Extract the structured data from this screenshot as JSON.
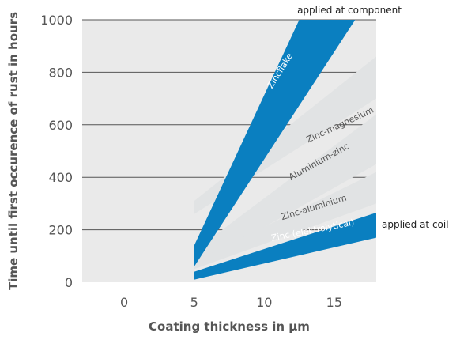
{
  "chart_data": {
    "type": "area",
    "xlabel": "Coating thickness in µm",
    "ylabel": "Time until first occurence of rust in hours",
    "xlim": [
      -3,
      18
    ],
    "ylim": [
      0,
      1000
    ],
    "xticks": [
      0,
      5,
      10,
      15
    ],
    "yticks": [
      0,
      200,
      400,
      600,
      800,
      1000
    ],
    "grid": "horizontal",
    "annotations": {
      "top": "applied at component",
      "right": "applied at coil"
    },
    "colors": {
      "blue": "#0a7fc0",
      "gray": "#e1e3e4",
      "plot_bg": "#eaeaea",
      "grid": "#555555",
      "text": "#555555"
    },
    "series": [
      {
        "name": "Zinc-magnesium",
        "color": "gray",
        "lower": [
          [
            5,
            260
          ],
          [
            18,
            700
          ]
        ],
        "upper": [
          [
            5,
            310
          ],
          [
            18,
            860
          ]
        ],
        "label_at": [
          15.5,
          590
        ],
        "label_angle": -25,
        "label_color": "#555555"
      },
      {
        "name": "Aluminium-zinc",
        "color": "gray",
        "lower": [
          [
            5,
            60
          ],
          [
            18,
            450
          ]
        ],
        "upper": [
          [
            5,
            120
          ],
          [
            18,
            640
          ]
        ],
        "label_at": [
          14,
          450
        ],
        "label_angle": -29,
        "label_color": "#555555"
      },
      {
        "name": "Zinc-aluminium",
        "color": "gray",
        "lower": [
          [
            5,
            50
          ],
          [
            18,
            300
          ]
        ],
        "upper": [
          [
            5,
            80
          ],
          [
            18,
            420
          ]
        ],
        "label_at": [
          13.6,
          275
        ],
        "label_angle": -17,
        "label_color": "#555555"
      },
      {
        "name": "Zinc (elektrolytical)",
        "color": "blue",
        "lower": [
          [
            5,
            10
          ],
          [
            18,
            170
          ]
        ],
        "upper": [
          [
            5,
            40
          ],
          [
            18,
            265
          ]
        ],
        "label_at": [
          13.5,
          188
        ],
        "label_angle": -11,
        "label_color": "#ffffff"
      },
      {
        "name": "Zincflake",
        "color": "blue",
        "lower": [
          [
            5,
            60
          ],
          [
            16.5,
            1000
          ]
        ],
        "upper": [
          [
            5,
            140
          ],
          [
            12.5,
            1000
          ]
        ],
        "label_at": [
          11.3,
          800
        ],
        "label_angle": -58,
        "label_color": "#ffffff"
      }
    ]
  }
}
